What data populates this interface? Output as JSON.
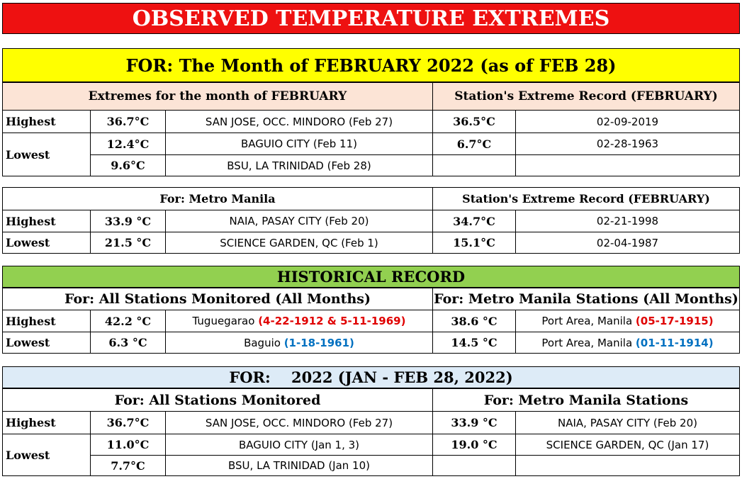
{
  "title": "OBSERVED TEMPERATURE EXTREMES",
  "subtitle": "FOR:   The Month of FEBRUARY 2022 (as of  FEB 28)",
  "colors": {
    "title_bg": "#ee1111",
    "subtitle_bg": "#ffff00",
    "peach_bg": "#fce4d6",
    "green_bg": "#92d050",
    "blue_bg": "#ddebf7",
    "red_text": "#e00000",
    "blue_text": "#0070c0"
  },
  "feb": {
    "left_header": "Extremes for the month of FEBRUARY",
    "right_header": "Station's Extreme Record (FEBRUARY)",
    "highest_label": "Highest",
    "lowest_label": "Lowest",
    "rows": [
      {
        "temp": "36.7°C",
        "location": "SAN JOSE, OCC. MINDORO (Feb 27)",
        "rec_temp": "36.5°C",
        "rec_date": "02-09-2019"
      },
      {
        "temp": "12.4°C",
        "location": "BAGUIO CITY  (Feb 11)",
        "rec_temp": "6.7°C",
        "rec_date": "02-28-1963"
      },
      {
        "temp": "9.6°C",
        "location": "BSU, LA TRINIDAD (Feb 28)",
        "rec_temp": "",
        "rec_date": ""
      }
    ]
  },
  "metro": {
    "left_header": "For: Metro Manila",
    "right_header": "Station's Extreme Record (FEBRUARY)",
    "highest_label": "Highest",
    "lowest_label": "Lowest",
    "rows": [
      {
        "temp": "33.9 °C",
        "location": "NAIA, PASAY CITY (Feb 20)",
        "rec_temp": "34.7°C",
        "rec_date": "02-21-1998"
      },
      {
        "temp": "21.5 °C",
        "location": "SCIENCE GARDEN, QC (Feb 1)",
        "rec_temp": "15.1°C",
        "rec_date": "02-04-1987"
      }
    ]
  },
  "historical": {
    "header": "HISTORICAL RECORD",
    "left_header": "For:  All Stations Monitored (All Months)",
    "right_header": "For: Metro Manila Stations (All Months)",
    "highest_label": "Highest",
    "lowest_label": "Lowest",
    "rows": [
      {
        "temp": "42.2 °C",
        "place": "Tuguegarao ",
        "date": "(4-22-1912 & 5-11-1969)",
        "rec_temp": "38.6 °C",
        "rec_place": "Port Area, Manila ",
        "rec_date": "(05-17-1915)"
      },
      {
        "temp": "6.3 °C",
        "place": "Baguio ",
        "date": "(1-18-1961)",
        "rec_temp": "14.5 °C",
        "rec_place": "Port Area, Manila ",
        "rec_date": "(01-11-1914)"
      }
    ]
  },
  "year": {
    "header": "FOR:    2022 (JAN - FEB 28, 2022)",
    "left_header": "For:  All Stations Monitored",
    "right_header": "For: Metro Manila Stations",
    "highest_label": "Highest",
    "lowest_label": "Lowest",
    "rows": [
      {
        "temp": "36.7°C",
        "location": "SAN JOSE, OCC. MINDORO (Feb 27)",
        "rec_temp": "33.9 °C",
        "rec_location": "NAIA, PASAY CITY (Feb 20)"
      },
      {
        "temp": "11.0°C",
        "location": "BAGUIO CITY  (Jan 1, 3)",
        "rec_temp": "19.0 °C",
        "rec_location": "SCIENCE GARDEN, QC (Jan 17)"
      },
      {
        "temp": "7.7°C",
        "location": "BSU, LA TRINIDAD (Jan 10)",
        "rec_temp": "",
        "rec_location": ""
      }
    ]
  }
}
